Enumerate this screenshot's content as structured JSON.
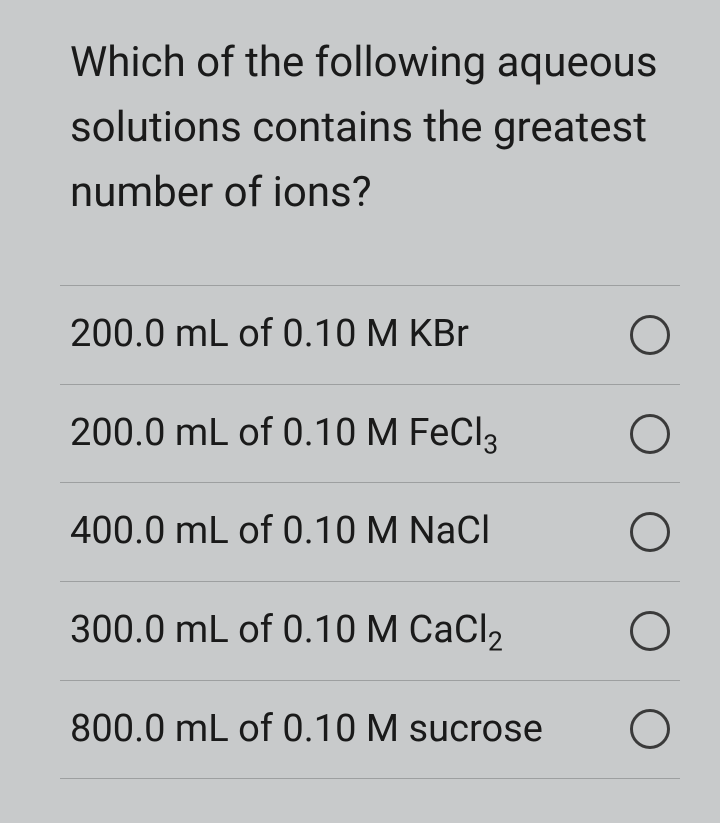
{
  "question": {
    "text": "Which of the following aqueous solutions contains the greatest number of ions?",
    "fontsize": 42,
    "lineheight": 1.55
  },
  "options": [
    {
      "text_html": "200.0 mL of 0.10 M KBr",
      "selected": false
    },
    {
      "text_html": "200.0 mL of 0.10 M FeCl<sub>3</sub>",
      "selected": false
    },
    {
      "text_html": "400.0 mL of 0.10 M NaCl",
      "selected": false
    },
    {
      "text_html": "300.0 mL of 0.10 M CaCl<sub>2</sub>",
      "selected": false
    },
    {
      "text_html": "800.0 mL of 0.10 M sucrose",
      "selected": false
    }
  ],
  "style": {
    "background_color": "#c8cacb",
    "text_color": "#1a1a1a",
    "divider_color": "#9d9fa0",
    "radio_border_color": "#3a3a3a",
    "option_fontsize": 38,
    "radio_size": 40
  }
}
